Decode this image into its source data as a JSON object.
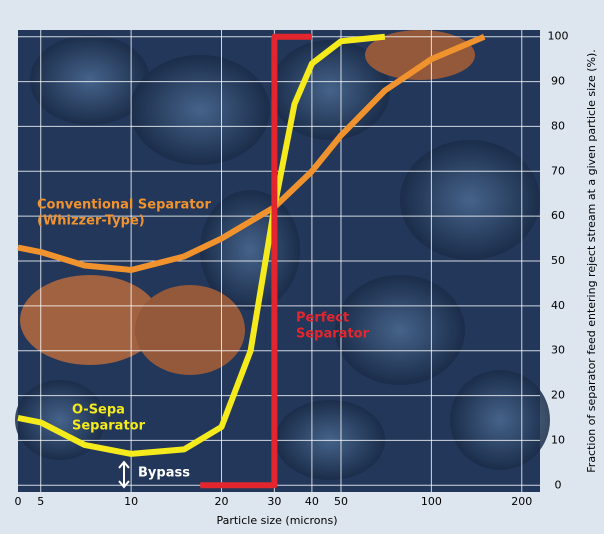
{
  "chart_data": {
    "type": "line",
    "x_label": "Particle size (microns)",
    "y_label": "Fraction of separator feed entering reject stream at a given particle size (%).",
    "x_scale": "log",
    "x_origin_label": "0",
    "xlim": [
      4.2,
      230
    ],
    "xticks": [
      5,
      10,
      20,
      30,
      40,
      50,
      100,
      200
    ],
    "ylim": [
      -1.5,
      101.5
    ],
    "yticks": [
      0,
      10,
      20,
      30,
      40,
      50,
      60,
      70,
      80,
      90,
      100
    ],
    "grid": true,
    "series": [
      {
        "name_lines": [
          "Conventional Separator",
          "(Whizzer-Type)"
        ],
        "color": "#f0922e",
        "x": [
          4.2,
          5,
          7,
          10,
          15,
          20,
          30,
          40,
          50,
          70,
          100,
          150
        ],
        "values": [
          53,
          52,
          49,
          48,
          51,
          55,
          62,
          70,
          78,
          88,
          95,
          100
        ]
      },
      {
        "name_lines": [
          "O-Sepa",
          "Separator"
        ],
        "color": "#f5ea1c",
        "x": [
          4.2,
          5,
          7,
          10,
          15,
          20,
          25,
          30,
          35,
          40,
          50,
          70
        ],
        "values": [
          15,
          14,
          9,
          7,
          8,
          13,
          30,
          62,
          85,
          94,
          99,
          100
        ]
      },
      {
        "name_lines": [
          "Perfect",
          "Separator"
        ],
        "color": "#e3262d",
        "x": [
          17,
          30,
          30,
          40
        ],
        "values": [
          0,
          0,
          100,
          100
        ]
      }
    ],
    "annotations": [
      {
        "text": "Bypass"
      }
    ]
  }
}
